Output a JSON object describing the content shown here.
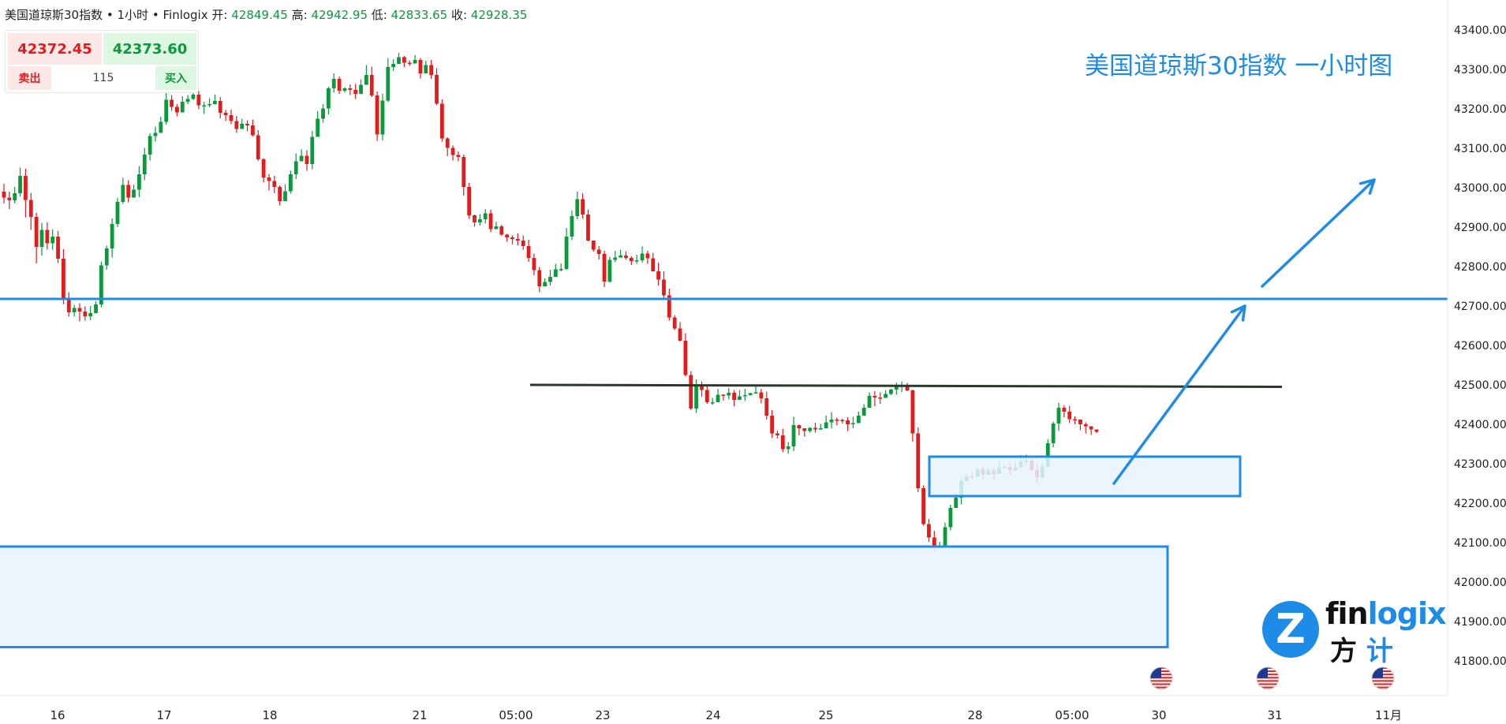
{
  "header": {
    "symbol": "美国道琼斯30指数",
    "sep": "•",
    "interval": "1小时",
    "provider": "Finlogix",
    "open_label": "开:",
    "open": "42849.45",
    "high_label": "高:",
    "high": "42942.95",
    "low_label": "低:",
    "low": "42833.65",
    "close_label": "收:",
    "close": "42928.35"
  },
  "quote": {
    "sell_price": "42372.45",
    "buy_price": "42373.60",
    "sell_label": "卖出",
    "spread": "115",
    "buy_label": "买入"
  },
  "logo": {
    "mark": "Z",
    "word_a": "fin",
    "word_b": "logix",
    "cn_a": "方",
    "cn_b": "计"
  },
  "colors": {
    "up": "#0a9a3c",
    "down": "#e21c1c",
    "accent": "#1e8ce6",
    "resistance": "#2a3a2a",
    "zone_fill": "#e8f3fd"
  },
  "icons": [
    "us-flag-icon",
    "us-flag-icon",
    "us-flag-icon"
  ],
  "chart_data": {
    "type": "candlestick",
    "title": "美国道琼斯30指数 一小时图",
    "grid": false,
    "ylim": [
      41770,
      43450
    ],
    "y_ticks": [
      "43400.00",
      "43300.00",
      "43200.00",
      "43100.00",
      "43000.00",
      "42900.00",
      "42800.00",
      "42700.00",
      "42600.00",
      "42500.00",
      "42400.00",
      "42300.00",
      "42200.00",
      "42100.00",
      "42000.00",
      "41900.00",
      "41800.00"
    ],
    "x_ticks": [
      "16",
      "17",
      "18",
      "21",
      "05:00",
      "23",
      "24",
      "25",
      "28",
      "05:00",
      "30",
      "31",
      "11月"
    ],
    "support_line": 42718,
    "resistance_line": [
      42500,
      42495
    ],
    "zones": [
      {
        "name": "demand-zone-upper",
        "top": 42318,
        "bottom": 42218
      },
      {
        "name": "demand-zone-lower",
        "top": 42090,
        "bottom": 41835
      }
    ],
    "arrows": [
      {
        "from": [
          42250
        ],
        "to": [
          42700
        ]
      },
      {
        "from": [
          42750
        ],
        "to": [
          43020
        ]
      }
    ],
    "anchors": [
      [
        42990,
        43200,
        42960,
        42995,
        43070,
        42980,
        42785,
        42900,
        42760,
        42750,
        42740,
        42760,
        42900,
        43000,
        43080,
        43050,
        43020,
        43050,
        43150,
        43280,
        43240,
        43250,
        43200,
        43300,
        43050,
        43200,
        43330,
        43280,
        43310,
        43200,
        42900,
        42880,
        42850,
        42780,
        42740,
        42840,
        42980,
        42900,
        42800,
        42820,
        42790,
        42700,
        42600,
        42420,
        42460,
        42490,
        42420,
        42450,
        42480,
        42400,
        42300,
        42390,
        42400,
        42380,
        42430,
        42510,
        42480,
        42300,
        42120,
        42080,
        42260,
        42290,
        42280,
        42310,
        42260,
        42300,
        42450,
        42430,
        42380
      ]
    ],
    "candles": [
      [
        42990,
        42975,
        43010,
        42960
      ],
      [
        42975,
        42968,
        42990,
        42946
      ],
      [
        42968,
        42986,
        43002,
        42960
      ],
      [
        42986,
        43030,
        43051,
        42978
      ],
      [
        43030,
        42969,
        43048,
        42925
      ],
      [
        42969,
        42926,
        42987,
        42893
      ],
      [
        42926,
        42850,
        42936,
        42808
      ],
      [
        42850,
        42893,
        42911,
        42828
      ],
      [
        42893,
        42859,
        42912,
        42843
      ],
      [
        42859,
        42876,
        42894,
        42843
      ],
      [
        42876,
        42820,
        42890,
        42809
      ],
      [
        42820,
        42720,
        42844,
        42705
      ],
      [
        42720,
        42684,
        42735,
        42673
      ],
      [
        42684,
        42695,
        42703,
        42673
      ],
      [
        42695,
        42686,
        42707,
        42661
      ],
      [
        42686,
        42674,
        42699,
        42663
      ],
      [
        42674,
        42682,
        42700,
        42664
      ],
      [
        42682,
        42704,
        42712,
        42687
      ],
      [
        42704,
        42803,
        42813,
        42697
      ],
      [
        42803,
        42846,
        42853,
        42792
      ],
      [
        42846,
        42908,
        42922,
        42823
      ],
      [
        42908,
        42964,
        42974,
        42900
      ],
      [
        42964,
        43007,
        43025,
        42959
      ],
      [
        43007,
        42975,
        43019,
        42963
      ],
      [
        42975,
        42995,
        43008,
        42983
      ],
      [
        42995,
        43034,
        43055,
        42976
      ],
      [
        43034,
        43084,
        43101,
        43019
      ],
      [
        43084,
        43131,
        43138,
        43069
      ],
      [
        43131,
        43139,
        43155,
        43117
      ],
      [
        43139,
        43167,
        43180,
        43162
      ],
      [
        43167,
        43223,
        43247,
        43160
      ],
      [
        43223,
        43205,
        43235,
        43195
      ],
      [
        43205,
        43191,
        43212,
        43181
      ],
      [
        43191,
        43218,
        43232,
        43198
      ],
      [
        43218,
        43225,
        43235,
        43212
      ],
      [
        43225,
        43236,
        43245,
        43223
      ],
      [
        43236,
        43209,
        43245,
        43199
      ],
      [
        43209,
        43209,
        43218,
        43187
      ],
      [
        43209,
        43212,
        43227,
        43204
      ],
      [
        43212,
        43220,
        43236,
        43211
      ],
      [
        43220,
        43190,
        43230,
        43176
      ],
      [
        43190,
        43184,
        43197,
        43169
      ],
      [
        43184,
        43169,
        43198,
        43161
      ],
      [
        43169,
        43149,
        43182,
        43139
      ],
      [
        43149,
        43162,
        43175,
        43155
      ],
      [
        43162,
        43158,
        43171,
        43143
      ],
      [
        43158,
        43133,
        43173,
        43130
      ],
      [
        43133,
        43072,
        43146,
        43068
      ],
      [
        43072,
        43026,
        43075,
        43014
      ],
      [
        43026,
        43017,
        43035,
        42993
      ],
      [
        43017,
        43002,
        43030,
        42986
      ],
      [
        43002,
        42966,
        43006,
        42955
      ],
      [
        42966,
        42991,
        43009,
        42977
      ],
      [
        42991,
        43034,
        43043,
        42985
      ],
      [
        43034,
        43067,
        43087,
        43022
      ],
      [
        43067,
        43081,
        43097,
        43075
      ],
      [
        43081,
        43060,
        43095,
        43043
      ],
      [
        43060,
        43129,
        43144,
        43047
      ],
      [
        43129,
        43175,
        43194,
        43162
      ],
      [
        43175,
        43201,
        43212,
        43165
      ],
      [
        43201,
        43252,
        43256,
        43186
      ],
      [
        43252,
        43276,
        43290,
        43241
      ],
      [
        43276,
        43246,
        43282,
        43238
      ],
      [
        43246,
        43252,
        43255,
        43241
      ],
      [
        43252,
        43248,
        43262,
        43235
      ],
      [
        43248,
        43238,
        43263,
        43225
      ],
      [
        43238,
        43261,
        43274,
        43248
      ],
      [
        43261,
        43286,
        43311,
        43277
      ],
      [
        43286,
        43234,
        43307,
        43230
      ],
      [
        43234,
        43135,
        43244,
        43119
      ],
      [
        43135,
        43221,
        43238,
        43120
      ],
      [
        43221,
        43306,
        43328,
        43217
      ],
      [
        43306,
        43314,
        43326,
        43296
      ],
      [
        43314,
        43331,
        43342,
        43314
      ],
      [
        43331,
        43317,
        43334,
        43306
      ],
      [
        43317,
        43315,
        43323,
        43309
      ],
      [
        43315,
        43324,
        43336,
        43316
      ],
      [
        43324,
        43290,
        43329,
        43277
      ],
      [
        43290,
        43311,
        43322,
        43307
      ],
      [
        43311,
        43286,
        43324,
        43276
      ],
      [
        43286,
        43213,
        43303,
        43209
      ],
      [
        43213,
        43125,
        43224,
        43117
      ],
      [
        43125,
        43101,
        43128,
        43080
      ],
      [
        43101,
        43083,
        43107,
        43069
      ],
      [
        43083,
        43078,
        43092,
        43067
      ],
      [
        43078,
        43002,
        43084,
        42980
      ],
      [
        43002,
        42930,
        43012,
        42921
      ],
      [
        42930,
        42912,
        42932,
        42901
      ],
      [
        42912,
        42920,
        42933,
        42904
      ],
      [
        42920,
        42935,
        42946,
        42909
      ],
      [
        42935,
        42895,
        42944,
        42887
      ],
      [
        42895,
        42902,
        42914,
        42895
      ],
      [
        42902,
        42881,
        42906,
        42878
      ],
      [
        42881,
        42874,
        42883,
        42863
      ],
      [
        42874,
        42870,
        42879,
        42856
      ],
      [
        42870,
        42866,
        42884,
        42854
      ],
      [
        42866,
        42852,
        42879,
        42843
      ],
      [
        42852,
        42822,
        42868,
        42812
      ],
      [
        42822,
        42791,
        42833,
        42778
      ],
      [
        42791,
        42750,
        42799,
        42735
      ],
      [
        42750,
        42761,
        42770,
        42754
      ],
      [
        42761,
        42774,
        42792,
        42752
      ],
      [
        42774,
        42793,
        42807,
        42783
      ],
      [
        42793,
        42794,
        42808,
        42788
      ],
      [
        42794,
        42876,
        42898,
        42791
      ],
      [
        42876,
        42928,
        42942,
        42867
      ],
      [
        42928,
        42971,
        42990,
        42920
      ],
      [
        42971,
        42932,
        42986,
        42921
      ],
      [
        42932,
        42866,
        42945,
        42864
      ],
      [
        42866,
        42843,
        42861,
        42838
      ],
      [
        42843,
        42832,
        42852,
        42818
      ],
      [
        42832,
        42762,
        42840,
        42748
      ],
      [
        42762,
        42817,
        42825,
        42759
      ],
      [
        42817,
        42823,
        42840,
        42811
      ],
      [
        42823,
        42828,
        42843,
        42823
      ],
      [
        42828,
        42822,
        42839,
        42817
      ],
      [
        42822,
        42814,
        42826,
        42804
      ],
      [
        42814,
        42816,
        42830,
        42807
      ],
      [
        42816,
        42833,
        42851,
        42810
      ],
      [
        42833,
        42821,
        42840,
        42807
      ],
      [
        42821,
        42788,
        42835,
        42787
      ],
      [
        42788,
        42767,
        42810,
        42752
      ],
      [
        42767,
        42727,
        42788,
        42721
      ],
      [
        42727,
        42671,
        42744,
        42663
      ],
      [
        42671,
        42643,
        42677,
        42639
      ],
      [
        42643,
        42612,
        42659,
        42610
      ],
      [
        42612,
        42525,
        42631,
        42521
      ],
      [
        42525,
        42440,
        42535,
        42436
      ],
      [
        42440,
        42498,
        42514,
        42429
      ],
      [
        42498,
        42487,
        42509,
        42470
      ],
      [
        42487,
        42456,
        42498,
        42452
      ],
      [
        42456,
        42456,
        42467,
        42449
      ],
      [
        42456,
        42475,
        42490,
        42470
      ],
      [
        42475,
        42473,
        42476,
        42460
      ],
      [
        42473,
        42480,
        42492,
        42463
      ],
      [
        42480,
        42462,
        42487,
        42446
      ],
      [
        42462,
        42471,
        42487,
        42465
      ],
      [
        42471,
        42474,
        42490,
        42459
      ],
      [
        42474,
        42479,
        42480,
        42473
      ],
      [
        42479,
        42481,
        42500,
        42480
      ],
      [
        42481,
        42466,
        42490,
        42453
      ],
      [
        42466,
        42422,
        42483,
        42412
      ],
      [
        42422,
        42377,
        42436,
        42366
      ],
      [
        42377,
        42372,
        42384,
        42364
      ],
      [
        42372,
        42337,
        42389,
        42329
      ],
      [
        42337,
        42344,
        42355,
        42325
      ],
      [
        42344,
        42398,
        42419,
        42332
      ],
      [
        42398,
        42390,
        42399,
        42372
      ],
      [
        42390,
        42383,
        42390,
        42369
      ],
      [
        42383,
        42391,
        42393,
        42379
      ],
      [
        42391,
        42387,
        42404,
        42379
      ],
      [
        42387,
        42390,
        42401,
        42386
      ],
      [
        42390,
        42405,
        42422,
        42394
      ],
      [
        42405,
        42412,
        42431,
        42390
      ],
      [
        42412,
        42411,
        42417,
        42397
      ],
      [
        42411,
        42410,
        42414,
        42402
      ],
      [
        42410,
        42400,
        42418,
        42383
      ],
      [
        42400,
        42403,
        42419,
        42390
      ],
      [
        42403,
        42422,
        42432,
        42409
      ],
      [
        42422,
        42442,
        42451,
        42423
      ],
      [
        42442,
        42472,
        42481,
        42461
      ],
      [
        42472,
        42468,
        42484,
        42446
      ],
      [
        42468,
        42467,
        42481,
        42452
      ],
      [
        42467,
        42477,
        42486,
        42471
      ],
      [
        42477,
        42488,
        42490,
        42474
      ],
      [
        42488,
        42496,
        42506,
        42475
      ],
      [
        42496,
        42499,
        42509,
        42482
      ],
      [
        42499,
        42486,
        42505,
        42484
      ],
      [
        42486,
        42377,
        42488,
        42356
      ],
      [
        42377,
        42238,
        42392,
        42228
      ],
      [
        42238,
        42147,
        42245,
        42143
      ],
      [
        42147,
        42113,
        42160,
        42102
      ],
      [
        42113,
        42088,
        42130,
        42081
      ],
      [
        42088,
        42093,
        42102,
        42085
      ],
      [
        42093,
        42139,
        42151,
        42088
      ],
      [
        42139,
        42188,
        42196,
        42131
      ],
      [
        42188,
        42214,
        42225,
        42193
      ],
      [
        42214,
        42256,
        42264,
        42198
      ],
      [
        42256,
        42268,
        42275,
        42259
      ],
      [
        42268,
        42266,
        42279,
        42260
      ],
      [
        42266,
        42286,
        42290,
        42270
      ],
      [
        42286,
        42272,
        42291,
        42260
      ],
      [
        42272,
        42283,
        42291,
        42275
      ],
      [
        42283,
        42274,
        42291,
        42260
      ],
      [
        42274,
        42290,
        42305,
        42286
      ],
      [
        42290,
        42292,
        42296,
        42287
      ],
      [
        42292,
        42283,
        42305,
        42271
      ],
      [
        42283,
        42291,
        42307,
        42286
      ],
      [
        42291,
        42306,
        42322,
        42296
      ],
      [
        42306,
        42308,
        42323,
        42295
      ],
      [
        42308,
        42284,
        42315,
        42282
      ],
      [
        42284,
        42266,
        42300,
        42250
      ],
      [
        42266,
        42293,
        42305,
        42261
      ],
      [
        42293,
        42352,
        42362,
        42291
      ],
      [
        42352,
        42402,
        42407,
        42342
      ],
      [
        42402,
        42442,
        42455,
        42383
      ],
      [
        42442,
        42432,
        42448,
        42418
      ],
      [
        42432,
        42413,
        42447,
        42403
      ],
      [
        42413,
        42412,
        42420,
        42400
      ],
      [
        42412,
        42400,
        42406,
        42385
      ],
      [
        42400,
        42395,
        42405,
        42377
      ],
      [
        42395,
        42387,
        42394,
        42373
      ],
      [
        42387,
        42381,
        42384,
        42378
      ]
    ],
    "candle_span": [
      5,
      1390
    ]
  }
}
